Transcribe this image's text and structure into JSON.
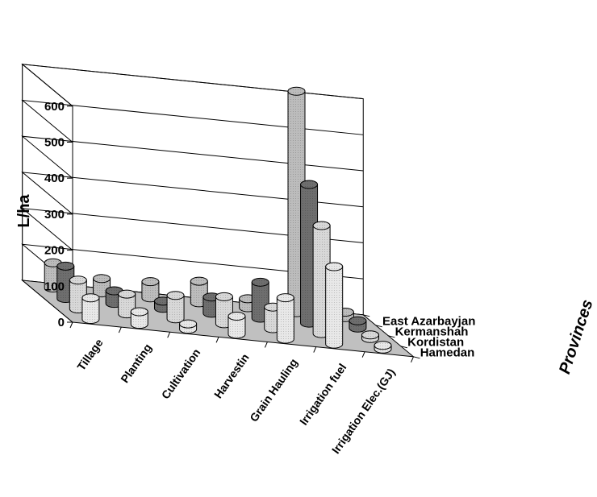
{
  "chart_data": {
    "type": "bar",
    "subtype": "3d-cylinder",
    "title": "",
    "ylabel": "L/ha",
    "zlabel": "Provinces",
    "ylim": [
      0,
      600
    ],
    "yticks": [
      "0",
      "100",
      "200",
      "300",
      "400",
      "500",
      "600"
    ],
    "grid": true,
    "categories": [
      "Tillage",
      "Planting",
      "Cultivation",
      "Harvestin",
      "Grain Hauling",
      "Irrigation fuel",
      "Irrigation Elec.(GJ)"
    ],
    "series": [
      {
        "name": "Hamedan",
        "color": "#e8e8e8",
        "values": [
          60,
          35,
          15,
          50,
          115,
          215,
          10
        ]
      },
      {
        "name": "Kordistan",
        "color": "#d8d8d8",
        "values": [
          80,
          55,
          65,
          75,
          60,
          300,
          10
        ]
      },
      {
        "name": "Kermanshah",
        "color": "#6e6e6e",
        "values": [
          90,
          35,
          20,
          45,
          100,
          385,
          20
        ]
      },
      {
        "name": "East Azarbayjan",
        "color": "#bcbcbc",
        "values": [
          70,
          40,
          45,
          60,
          25,
          615,
          15
        ]
      }
    ]
  }
}
